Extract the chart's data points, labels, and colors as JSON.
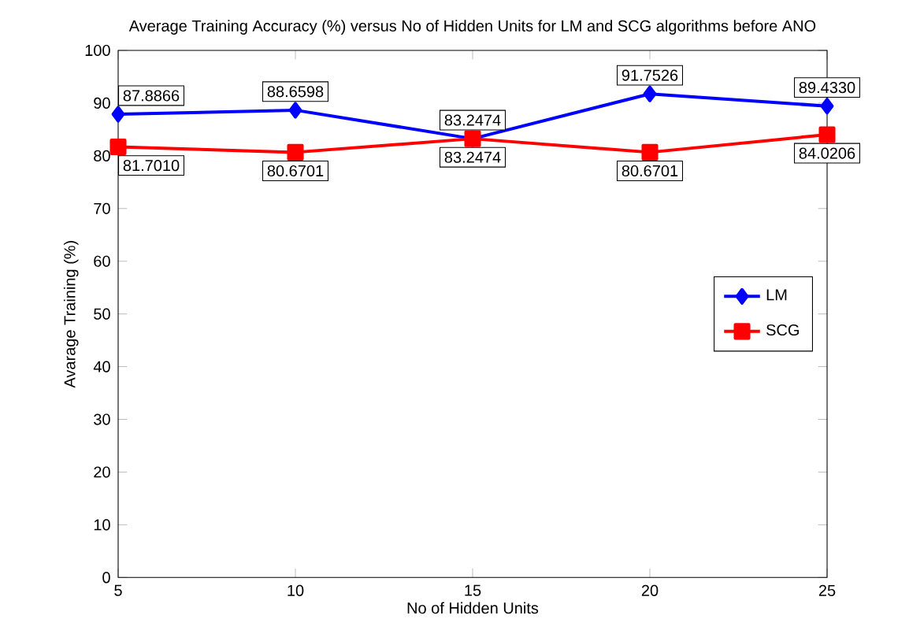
{
  "chart_data": {
    "type": "line",
    "title": "Average Training Accuracy (%) versus No of Hidden Units for LM and SCG algorithms before ANO",
    "xlabel": "No of Hidden Units",
    "ylabel": "Avarage Training (%)",
    "x": [
      5,
      10,
      15,
      20,
      25
    ],
    "series": [
      {
        "name": "LM",
        "color": "#0000ff",
        "marker": "diamond",
        "values": [
          87.8866,
          88.6598,
          83.2474,
          91.7526,
          89.433
        ],
        "value_labels": [
          "87.8866",
          "88.6598",
          "83.2474",
          "91.7526",
          "89.4330"
        ]
      },
      {
        "name": "SCG",
        "color": "#ff0000",
        "marker": "square",
        "values": [
          81.701,
          80.6701,
          83.2474,
          80.6701,
          84.0206
        ],
        "value_labels": [
          "81.7010",
          "80.6701",
          "83.2474",
          "80.6701",
          "84.0206"
        ]
      }
    ],
    "xlim": [
      5,
      25
    ],
    "xticks": [
      5,
      10,
      15,
      20,
      25
    ],
    "ylim": [
      0,
      100
    ],
    "yticks": [
      0,
      10,
      20,
      30,
      40,
      50,
      60,
      70,
      80,
      90,
      100
    ],
    "grid": false,
    "legend": "right",
    "line_style": "solid"
  }
}
